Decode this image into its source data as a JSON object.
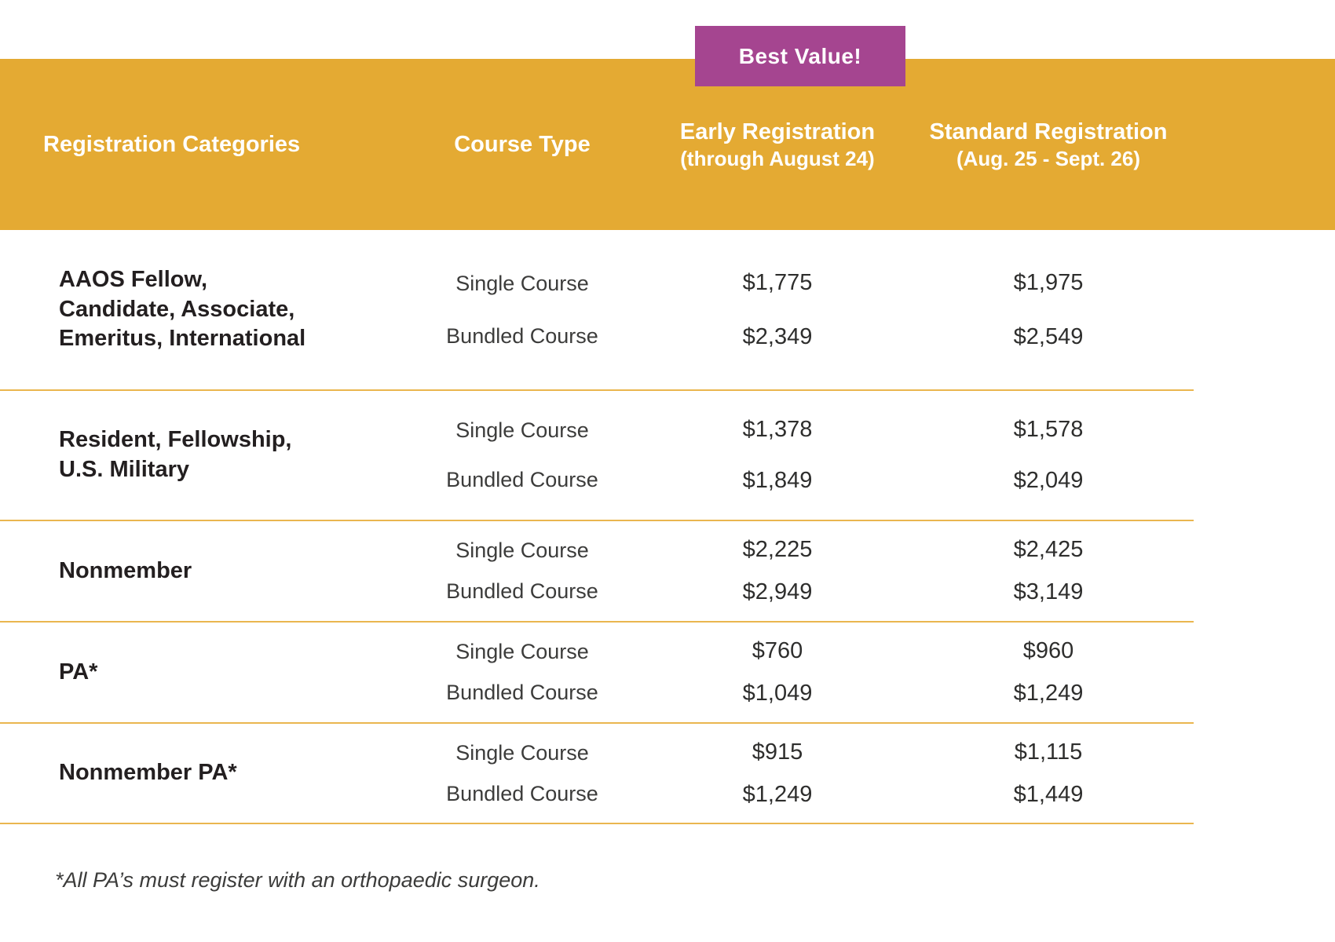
{
  "colors": {
    "gold_header": "#E4AA33",
    "purple_badge": "#A54590",
    "divider_gold": "#EAB64F",
    "text_dark": "#231F20",
    "text_light": "#3C3C3B"
  },
  "badge": {
    "label": "Best Value!"
  },
  "header": {
    "categories_label": "Registration Categories",
    "course_type_label": "Course Type",
    "early": {
      "label": "Early Registration",
      "sublabel": "(through August 24)"
    },
    "standard": {
      "label": "Standard Registration",
      "sublabel": "(Aug. 25 - Sept. 26)"
    }
  },
  "rows": [
    {
      "category": "AAOS Fellow,\nCandidate, Associate,\nEmeritus, International",
      "entries": [
        {
          "type": "Single Course",
          "early": "$1,775",
          "standard": "$1,975"
        },
        {
          "type": "Bundled Course",
          "early": "$2,349",
          "standard": "$2,549"
        }
      ]
    },
    {
      "category": "Resident, Fellowship,\nU.S. Military",
      "entries": [
        {
          "type": "Single Course",
          "early": "$1,378",
          "standard": "$1,578"
        },
        {
          "type": "Bundled Course",
          "early": "$1,849",
          "standard": "$2,049"
        }
      ]
    },
    {
      "category": "Nonmember",
      "entries": [
        {
          "type": "Single Course",
          "early": "$2,225",
          "standard": "$2,425"
        },
        {
          "type": "Bundled Course",
          "early": "$2,949",
          "standard": "$3,149"
        }
      ]
    },
    {
      "category": "PA*",
      "entries": [
        {
          "type": "Single Course",
          "early": "$760",
          "standard": "$960"
        },
        {
          "type": "Bundled Course",
          "early": "$1,049",
          "standard": "$1,249"
        }
      ]
    },
    {
      "category": "Nonmember PA*",
      "entries": [
        {
          "type": "Single Course",
          "early": "$915",
          "standard": "$1,115"
        },
        {
          "type": "Bundled Course",
          "early": "$1,249",
          "standard": "$1,449"
        }
      ]
    }
  ],
  "footnote": "*All PA’s must register with an orthopaedic surgeon."
}
